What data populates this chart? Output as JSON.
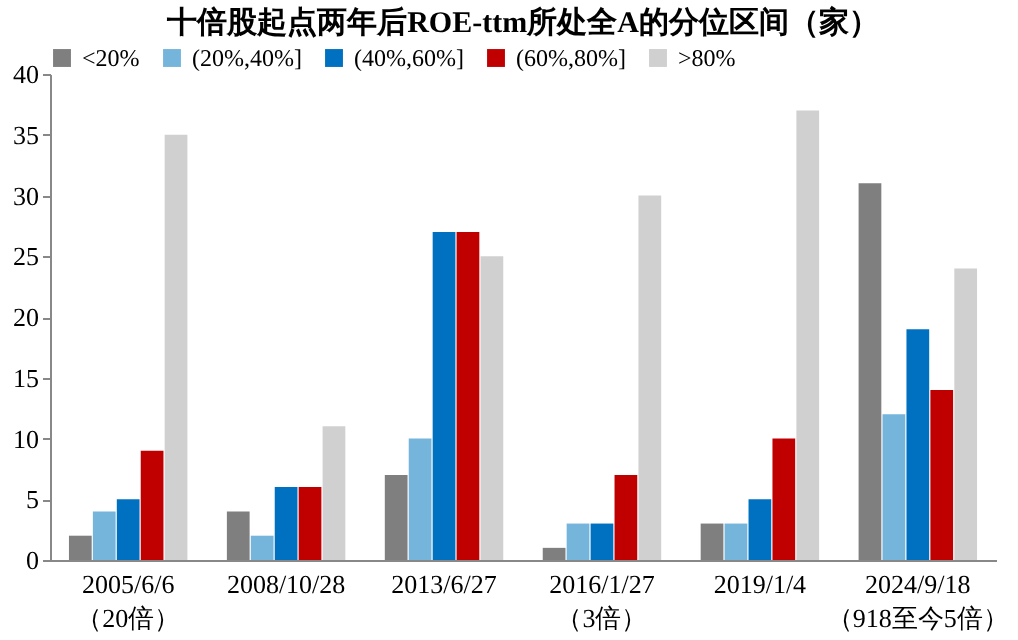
{
  "chart_data": {
    "type": "bar",
    "title": "十倍股起点两年后ROE-ttm所处全A的分位区间（家）",
    "categories": [
      "2005/6/6\n（20倍）",
      "2008/10/28",
      "2013/6/27",
      "2016/1/27\n（3倍）",
      "2019/1/4",
      "2024/9/18\n（918至今5倍）"
    ],
    "series": [
      {
        "name": "<20%",
        "color": "#7f7f7f",
        "values": [
          2,
          4,
          7,
          1,
          3,
          31
        ]
      },
      {
        "name": "(20%,40%]",
        "color": "#75b4db",
        "values": [
          4,
          2,
          10,
          3,
          3,
          12
        ]
      },
      {
        "name": "(40%,60%]",
        "color": "#0070c0",
        "values": [
          5,
          6,
          27,
          3,
          5,
          19
        ]
      },
      {
        "name": "(60%,80%]",
        "color": "#c00000",
        "values": [
          9,
          6,
          27,
          7,
          10,
          14
        ]
      },
      {
        "name": ">80%",
        "color": "#d0d0d0",
        "values": [
          35,
          11,
          25,
          30,
          37,
          24
        ]
      }
    ],
    "ylim": [
      0,
      40
    ],
    "yticks": [
      0,
      5,
      10,
      15,
      20,
      25,
      30,
      35,
      40
    ],
    "grid": false,
    "legend": "top"
  }
}
